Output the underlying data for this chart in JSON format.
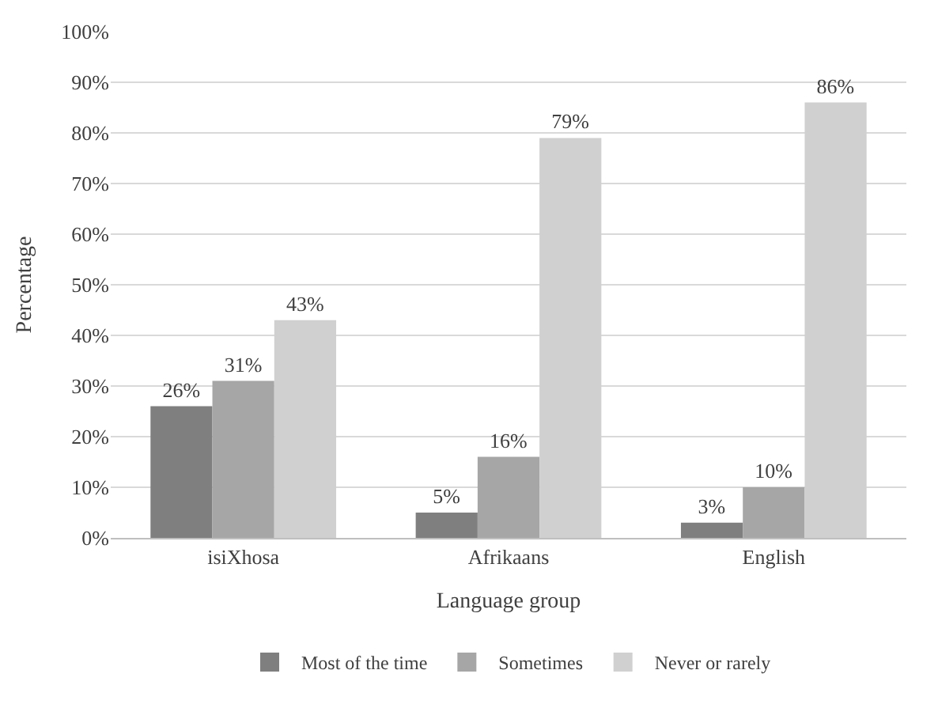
{
  "chart_data": {
    "type": "bar",
    "xlabel": "Language group",
    "ylabel": "Percentage",
    "categories": [
      "isiXhosa",
      "Afrikaans",
      "English"
    ],
    "series": [
      {
        "name": "Most of the time",
        "color": "#7f7f7f",
        "values": [
          26,
          5,
          3
        ],
        "value_labels": [
          "26%",
          "5%",
          "3%"
        ]
      },
      {
        "name": "Sometimes",
        "color": "#a6a6a6",
        "values": [
          31,
          16,
          10
        ],
        "value_labels": [
          "31%",
          "16%",
          "10%"
        ]
      },
      {
        "name": "Never or rarely",
        "color": "#d0d0d0",
        "values": [
          43,
          79,
          86
        ],
        "value_labels": [
          "43%",
          "79%",
          "86%"
        ]
      }
    ],
    "ylim": [
      0,
      100
    ],
    "yticks": [
      {
        "value": 0,
        "label": "0%"
      },
      {
        "value": 10,
        "label": "10%"
      },
      {
        "value": 20,
        "label": "20%"
      },
      {
        "value": 30,
        "label": "30%"
      },
      {
        "value": 40,
        "label": "40%"
      },
      {
        "value": 50,
        "label": "50%"
      },
      {
        "value": 60,
        "label": "60%"
      },
      {
        "value": 70,
        "label": "70%"
      },
      {
        "value": 80,
        "label": "80%"
      },
      {
        "value": 90,
        "label": "90%"
      },
      {
        "value": 100,
        "label": "100%"
      }
    ],
    "grid": "y",
    "legend": "bottom"
  }
}
